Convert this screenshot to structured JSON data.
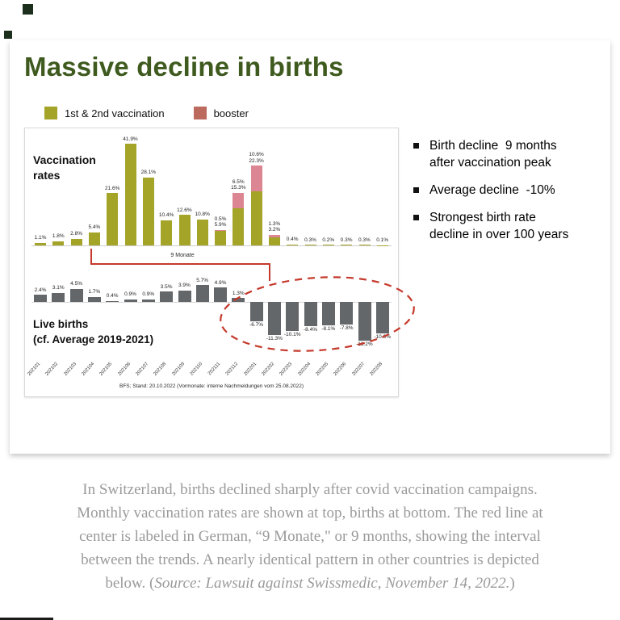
{
  "title": "Massive decline in births",
  "colors": {
    "title_green": "#3e5a1e",
    "accent_red": "#c5392b",
    "vaccination_olive": "#a4a428",
    "booster_pink": "#dd8693",
    "booster_legend": "#bd6a5e",
    "births_gray": "#63676a"
  },
  "legend": [
    {
      "label": "1st & 2nd vaccination",
      "color": "#a4a428"
    },
    {
      "label": "booster",
      "color": "#bd6a5e"
    }
  ],
  "chart_data": {
    "type": "bar",
    "description": "Monthly Swiss vaccination rates (top, stacked) and live births deviation vs. average 2019-2021 (bottom), Jan 2021 - Aug 2022",
    "categories": [
      "202101",
      "202102",
      "202103",
      "202104",
      "202105",
      "202106",
      "202107",
      "202108",
      "202109",
      "202110",
      "202111",
      "202112",
      "202201",
      "202202",
      "202203",
      "202204",
      "202205",
      "202206",
      "202207",
      "202208"
    ],
    "top_chart": {
      "label": "Vaccination rates",
      "unit": "%",
      "ylim": [
        0,
        45
      ],
      "series": [
        {
          "name": "1st & 2nd vaccination",
          "color": "#a4a428",
          "values": [
            1.1,
            1.8,
            2.8,
            5.4,
            21.6,
            41.9,
            28.1,
            10.4,
            12.6,
            10.8,
            5.9,
            15.3,
            22.3,
            3.2,
            0.4,
            0.3,
            0.2,
            0.3,
            0.3,
            0.1
          ]
        },
        {
          "name": "booster",
          "color": "#dd8693",
          "values": [
            0,
            0,
            0,
            0,
            0,
            0,
            0,
            0,
            0,
            0,
            0.5,
            6.5,
            10.6,
            1.3,
            0,
            0,
            0,
            0,
            0,
            0
          ]
        }
      ]
    },
    "bottom_chart": {
      "label": "Live births",
      "sublabel": "(cf. Average 2019-2021)",
      "unit": "%",
      "ylim": [
        -15,
        7
      ],
      "series": [
        {
          "name": "Live births vs. average 2019-2021",
          "color": "#63676a",
          "values": [
            2.4,
            3.1,
            4.5,
            1.7,
            0.4,
            0.9,
            0.9,
            3.5,
            3.9,
            5.7,
            4.9,
            1.3,
            -6.7,
            -11.3,
            -10.1,
            -8.4,
            -8.1,
            -7.8,
            -13.2,
            -10.9
          ]
        }
      ]
    },
    "connector_label": "9 Monate",
    "source": "BFS; Stand: 20.10.2022 (Vormonate: interne Nachmeldungen vom 25.08.2022)"
  },
  "bullets": [
    {
      "lines": [
        "Birth decline  9 months",
        "after vaccination peak"
      ]
    },
    {
      "lines": [
        "Average decline  -10%"
      ]
    },
    {
      "lines": [
        "Strongest birth rate",
        "decline in over 100 years"
      ]
    }
  ],
  "caption": {
    "lines": [
      "In Switzerland, births declined sharply after covid vaccination campaigns.",
      "Monthly vaccination rates are shown at top, births at bottom. The red line at",
      "center is labeled in German, “9 Monate,\" or 9 months, showing the interval",
      "between the trends. A nearly identical pattern in other countries is depicted"
    ],
    "last_line_prefix": "below. (",
    "last_line_italic": "Source: Lawsuit against Swissmedic, November 14, 2022.",
    "last_line_suffix": ")"
  }
}
